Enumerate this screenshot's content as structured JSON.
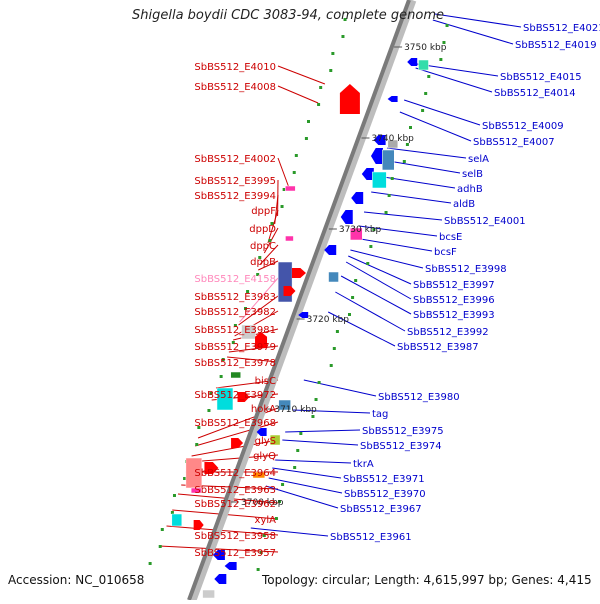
{
  "title": "Shigella boydii CDC 3083-94, complete genome",
  "footer": {
    "accession": "Accession: NC_010658",
    "topology": "Topology: circular; Length: 4,615,997 bp; Genes: 4,415"
  },
  "colors": {
    "left_label": "#cc0000",
    "right_label": "#0000cc",
    "highlight_label": "#ff88bb",
    "forward_gene": "#ff0000",
    "reverse_gene": "#0000ff"
  },
  "scale": [
    {
      "label": "3750 kbp"
    },
    {
      "label": "3740 kbp"
    },
    {
      "label": "3730 kbp"
    },
    {
      "label": "3720 kbp"
    },
    {
      "label": "3710 kbp"
    },
    {
      "label": "3700 kbp"
    }
  ],
  "left_labels": [
    {
      "text": "SbBS512_E4010"
    },
    {
      "text": "SbBS512_E4008"
    },
    {
      "text": "SbBS512_E4002"
    },
    {
      "text": "SbBS512_E3995"
    },
    {
      "text": "SbBS512_E3994"
    },
    {
      "text": "dppF"
    },
    {
      "text": "dppD"
    },
    {
      "text": "dppC"
    },
    {
      "text": "dppB"
    },
    {
      "text": "SbBS512_E4158"
    },
    {
      "text": "SbBS512_E3983"
    },
    {
      "text": "SbBS512_E3982"
    },
    {
      "text": "SbBS512_E3981"
    },
    {
      "text": "SbBS512_E3979"
    },
    {
      "text": "SbBS512_E3978"
    },
    {
      "text": "bisC"
    },
    {
      "text": "SbBS512_E3972"
    },
    {
      "text": "hokA"
    },
    {
      "text": "SbBS512_E3968"
    },
    {
      "text": "glyS"
    },
    {
      "text": "glyQ"
    },
    {
      "text": "SbBS512_E3964"
    },
    {
      "text": "SbBS512_E3963"
    },
    {
      "text": "SbBS512_E3962"
    },
    {
      "text": "xylA"
    },
    {
      "text": "SbBS512_E3958"
    },
    {
      "text": "SbBS512_E3957"
    }
  ],
  "right_labels": [
    {
      "text": "SbBS512_E4021"
    },
    {
      "text": "SbBS512_E4019"
    },
    {
      "text": "SbBS512_E4015"
    },
    {
      "text": "SbBS512_E4014"
    },
    {
      "text": "SbBS512_E4009"
    },
    {
      "text": "SbBS512_E4007"
    },
    {
      "text": "selA"
    },
    {
      "text": "selB"
    },
    {
      "text": "adhB"
    },
    {
      "text": "aldB"
    },
    {
      "text": "SbBS512_E4001"
    },
    {
      "text": "bcsE"
    },
    {
      "text": "bcsF"
    },
    {
      "text": "SbBS512_E3998"
    },
    {
      "text": "SbBS512_E3997"
    },
    {
      "text": "SbBS512_E3996"
    },
    {
      "text": "SbBS512_E3993"
    },
    {
      "text": "SbBS512_E3992"
    },
    {
      "text": "SbBS512_E3987"
    },
    {
      "text": "SbBS512_E3980"
    },
    {
      "text": "tag"
    },
    {
      "text": "SbBS512_E3975"
    },
    {
      "text": "SbBS512_E3974"
    },
    {
      "text": "tkrA"
    },
    {
      "text": "SbBS512_E3971"
    },
    {
      "text": "SbBS512_E3970"
    },
    {
      "text": "SbBS512_E3967"
    },
    {
      "text": "SbBS512_E3961"
    }
  ]
}
